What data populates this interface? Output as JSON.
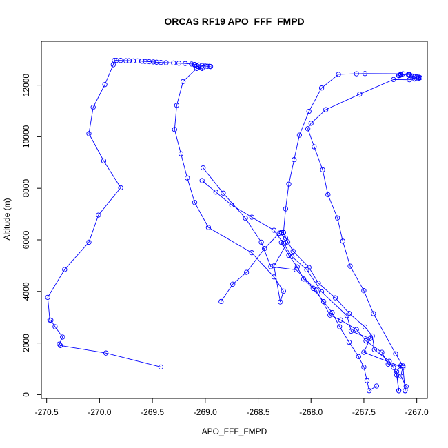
{
  "chart_data": {
    "type": "line",
    "title": "ORCAS RF19 APO_FFF_FMPD",
    "xlabel": "APO_FFF_FMPD",
    "ylabel": "Altitude (m)",
    "xlim": [
      -270.55,
      -266.9
    ],
    "ylim": [
      -150,
      13700
    ],
    "x_ticks": [
      -270.5,
      -270.0,
      -269.5,
      -269.0,
      -268.5,
      -268.0,
      -267.5,
      -267.0
    ],
    "x_tick_labels": [
      "-270.5",
      "-270.0",
      "-269.5",
      "-269.0",
      "-268.5",
      "-268.0",
      "-267.5",
      "-267.0"
    ],
    "y_ticks": [
      0,
      2000,
      4000,
      6000,
      8000,
      10000,
      12000
    ],
    "y_tick_labels": [
      "0",
      "2000",
      "4000",
      "6000",
      "8000",
      "10000",
      "12000"
    ],
    "grid": false,
    "line_color": "#0000ff",
    "marker": "open-circle",
    "series": [
      {
        "x": [
          -269.42,
          -269.94,
          -270.37,
          -270.38,
          -270.35,
          -270.42,
          -270.46,
          -270.47,
          -270.49,
          -270.33,
          -270.1,
          -270.01,
          -269.8,
          -269.96,
          -270.1,
          -270.06,
          -269.95,
          -269.87,
          -269.86,
          -269.84,
          -269.8,
          -269.75,
          -269.72,
          -269.68,
          -269.64,
          -269.6,
          -269.57,
          -269.53,
          -269.49,
          -269.46,
          -269.42,
          -269.37,
          -269.3,
          -269.25,
          -269.19,
          -269.13,
          -269.1,
          -269.06,
          -269.03,
          -269.0,
          -268.98,
          -268.96,
          -268.95
        ],
        "y": [
          1070,
          1610,
          1900,
          1960,
          2230,
          2630,
          2880,
          2890,
          3770,
          4850,
          5910,
          6960,
          8020,
          9060,
          10120,
          11140,
          12020,
          12790,
          12960,
          12960,
          12960,
          12950,
          12950,
          12940,
          12940,
          12930,
          12920,
          12910,
          12900,
          12890,
          12880,
          12870,
          12860,
          12850,
          12840,
          12820,
          12800,
          12780,
          12760,
          12740,
          12730,
          12730,
          12720
        ]
      },
      {
        "x": [
          -269.1,
          -269.08,
          -269.06,
          -269.04,
          -269.03,
          -269.08,
          -269.21,
          -269.27,
          -269.29,
          -269.23,
          -269.17,
          -269.1,
          -268.97,
          -268.56,
          -268.35,
          -268.26,
          -268.29,
          -268.35,
          -268.22,
          -268.26,
          -268.28,
          -268.28,
          -268.26,
          -268.24,
          -268.21,
          -268.16,
          -268.11,
          -268.02,
          -267.9,
          -267.74,
          -267.57,
          -267.49,
          -267.13,
          -267.15,
          -267.07,
          -267.08,
          -267.15,
          -267.16,
          -267.16,
          -267.17
        ],
        "y": [
          12780,
          12750,
          12710,
          12680,
          12650,
          12650,
          12140,
          11220,
          10280,
          9340,
          8400,
          7450,
          6480,
          5500,
          4560,
          4010,
          3590,
          4990,
          5920,
          6280,
          6290,
          6280,
          6290,
          7200,
          8160,
          9110,
          10060,
          10980,
          11890,
          12420,
          12440,
          12450,
          12440,
          12430,
          12420,
          12410,
          12400,
          12390,
          12380,
          12370
        ]
      },
      {
        "x": [
          -267.07,
          -267.05,
          -267.03,
          -267.02,
          -267.0,
          -266.98,
          -266.97,
          -266.98,
          -267.0,
          -267.02,
          -267.07,
          -267.22,
          -267.54,
          -267.86,
          -268.0,
          -268.03,
          -267.97,
          -267.89,
          -267.84,
          -267.75,
          -267.7,
          -267.63,
          -267.5,
          -267.41,
          -267.2,
          -267.13,
          -267.15,
          -267.1,
          -267.11
        ],
        "y": [
          12390,
          12360,
          12350,
          12330,
          12320,
          12310,
          12290,
          12270,
          12250,
          12240,
          12210,
          12220,
          11650,
          11050,
          10520,
          10310,
          9610,
          8720,
          7750,
          6850,
          5950,
          4980,
          4030,
          3140,
          1580,
          1110,
          710,
          310,
          150
        ]
      },
      {
        "x": [
          -267.11,
          -267.13,
          -267.5,
          -267.44,
          -267.62,
          -267.66,
          -267.9,
          -268.04,
          -268.18,
          -268.26,
          -268.35,
          -268.56,
          -268.75,
          -268.9,
          -269.03
        ],
        "y": [
          150,
          1050,
          1640,
          2170,
          2460,
          3060,
          3980,
          4840,
          5350,
          5860,
          6370,
          6880,
          7350,
          7850,
          8300
        ]
      },
      {
        "x": [
          -269.02,
          -268.83,
          -268.62,
          -268.47,
          -268.38,
          -268.14,
          -267.95,
          -267.82,
          -267.72,
          -267.57,
          -267.48,
          -267.33,
          -267.27,
          -267.15,
          -267.19,
          -267.17
        ],
        "y": [
          8790,
          7810,
          6840,
          5910,
          4960,
          4840,
          4050,
          3080,
          2890,
          2520,
          2080,
          1640,
          1180,
          1120,
          890,
          150
        ]
      },
      {
        "x": [
          -267.17,
          -267.19,
          -267.22,
          -267.26,
          -267.4,
          -267.42,
          -267.49,
          -267.64,
          -267.77,
          -267.93,
          -268.02,
          -268.17,
          -268.24,
          -268.3,
          -268.44,
          -268.61,
          -268.74,
          -268.85
        ],
        "y": [
          150,
          760,
          1050,
          1290,
          1740,
          2270,
          2620,
          3150,
          3750,
          4320,
          4930,
          5560,
          6070,
          6260,
          5660,
          4740,
          4280,
          3610
        ]
      },
      {
        "x": [
          -267.38,
          -267.45,
          -267.47,
          -267.5,
          -267.55,
          -267.64,
          -267.73,
          -267.8,
          -267.88,
          -267.98,
          -268.07,
          -268.13,
          -268.21,
          -268.28
        ],
        "y": [
          330,
          150,
          540,
          1060,
          1470,
          2030,
          2630,
          3180,
          3600,
          4120,
          4480,
          4950,
          5400,
          5900
        ]
      }
    ]
  }
}
